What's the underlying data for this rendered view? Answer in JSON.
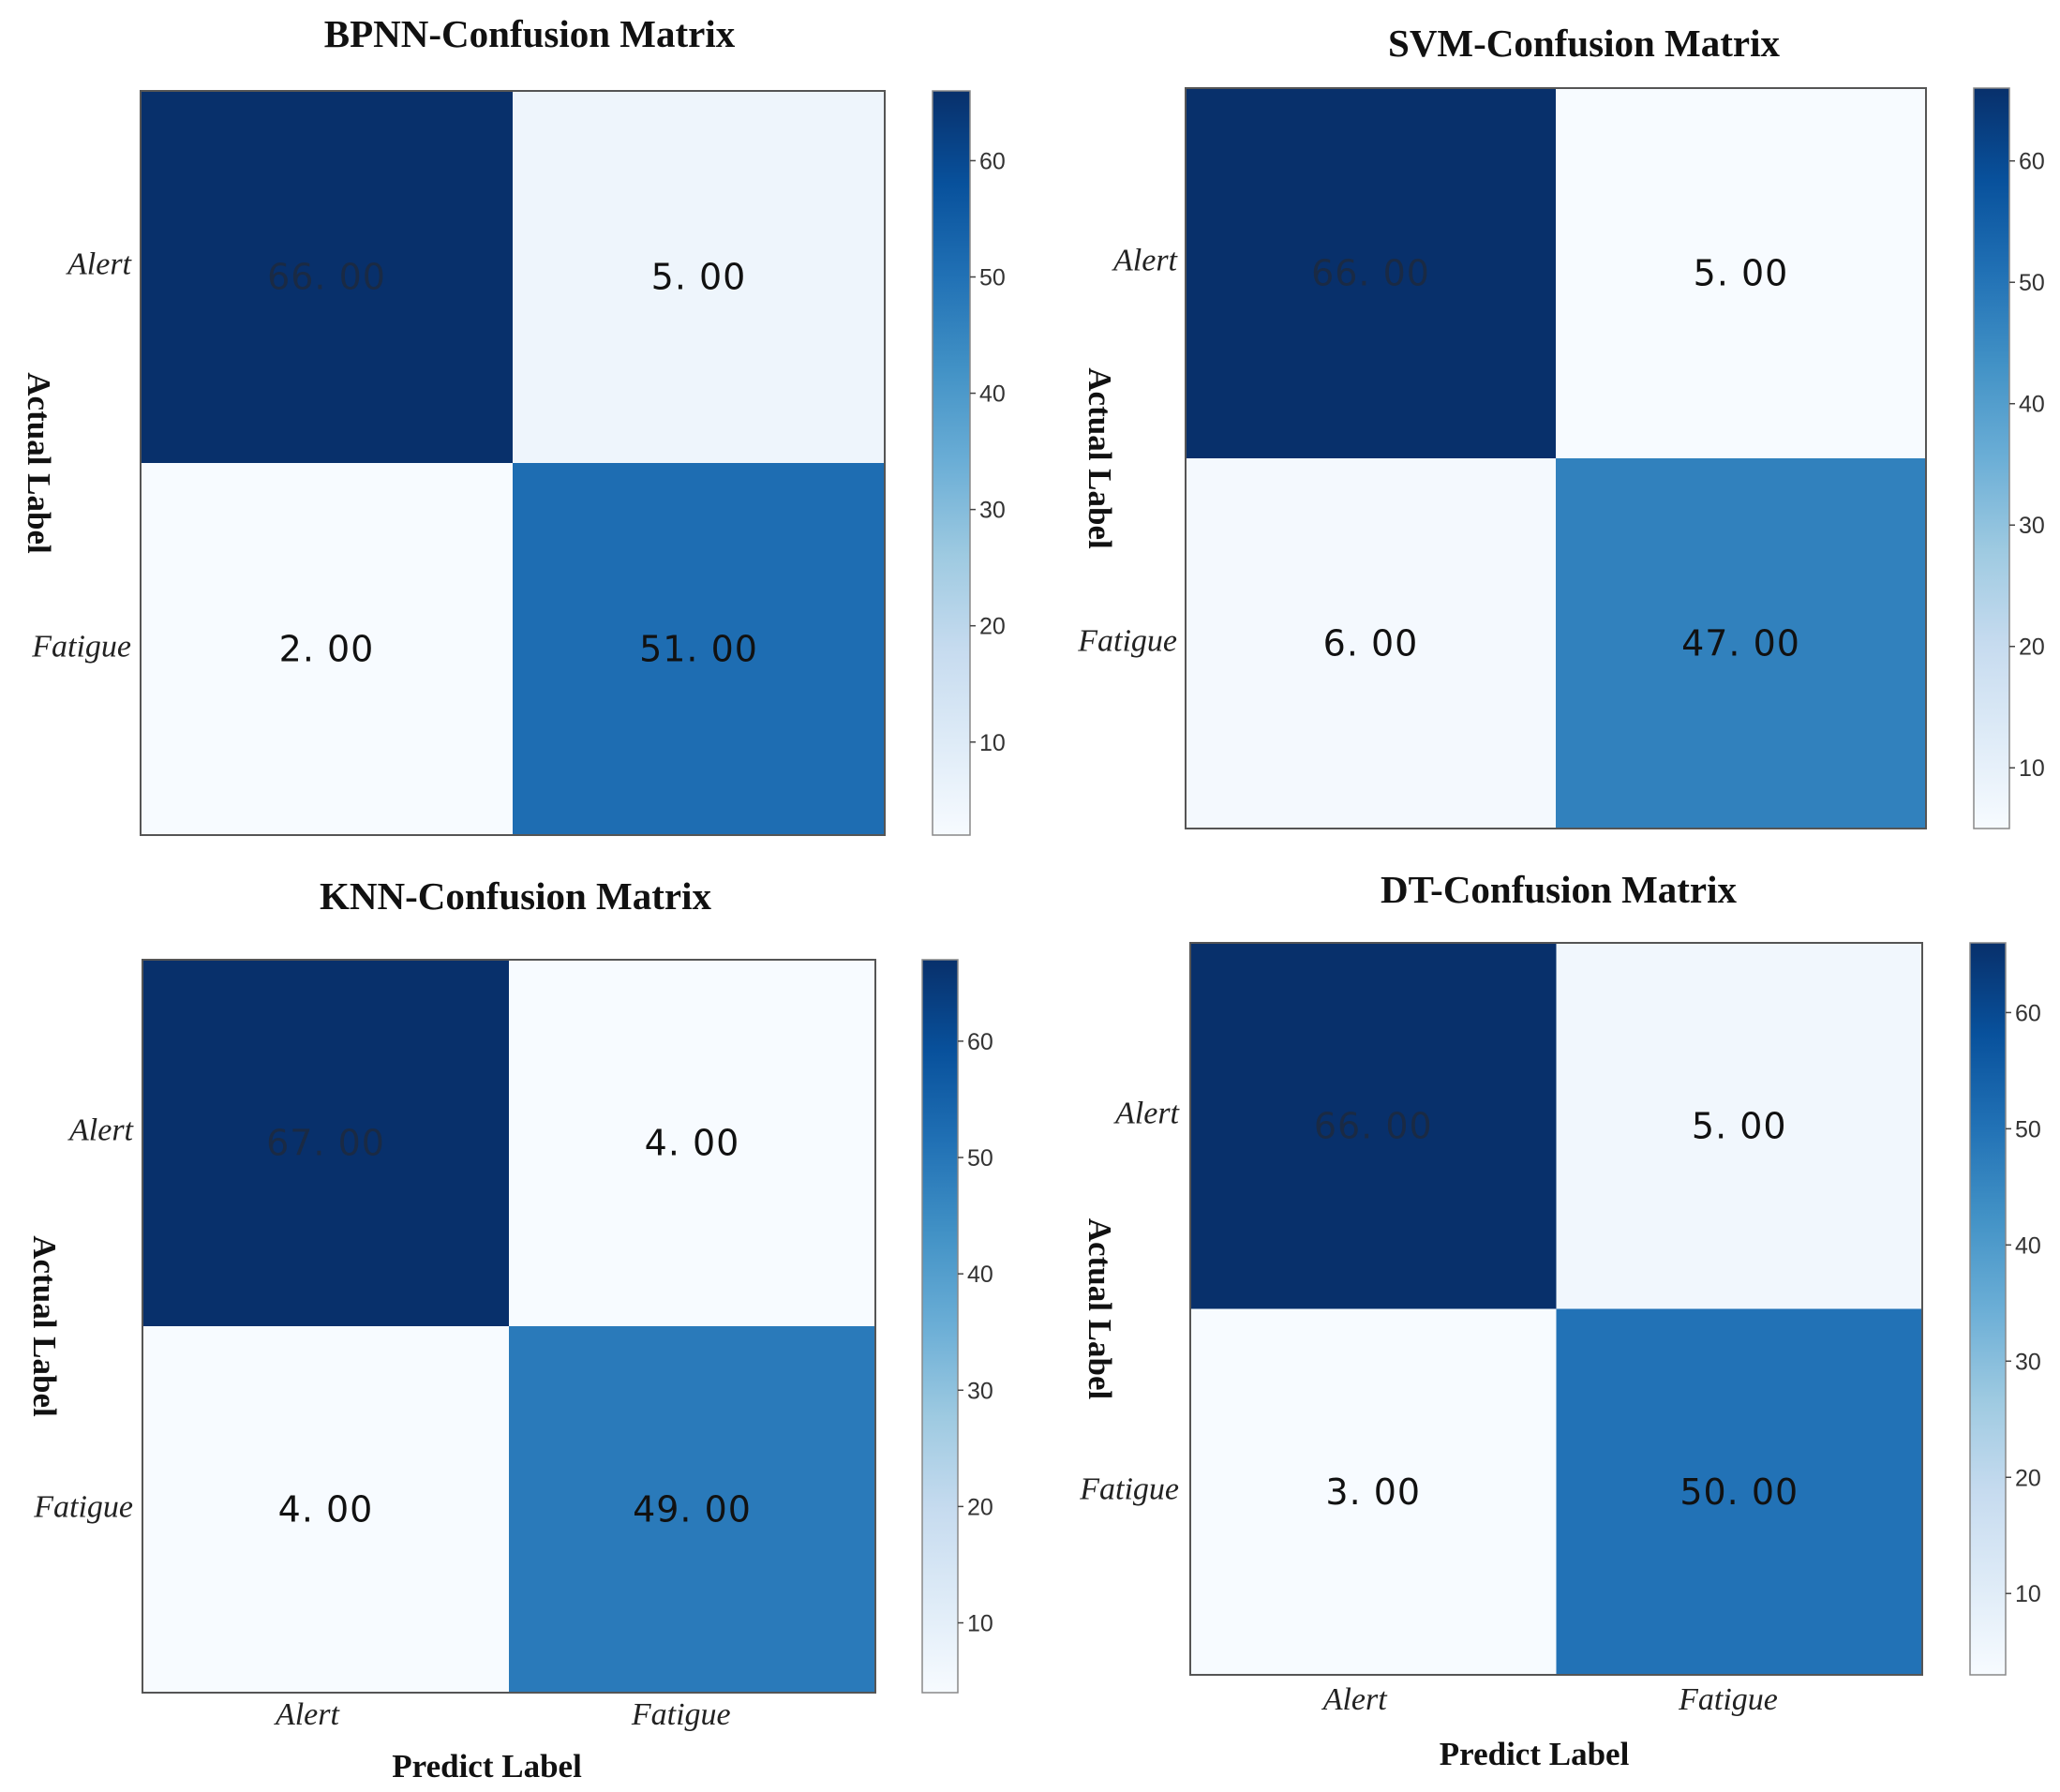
{
  "chart_data": [
    {
      "type": "heatmap",
      "title": "BPNN-Confusion Matrix",
      "ylabel": "Actual Label",
      "xlabel": "",
      "rows": [
        "Alert",
        "Fatigue"
      ],
      "cols": [],
      "values": [
        [
          66.0,
          5.0
        ],
        [
          2.0,
          51.0
        ]
      ],
      "display_values": [
        [
          "66. 00",
          "5. 00"
        ],
        [
          "2. 00",
          "51. 00"
        ]
      ],
      "colorbar": {
        "range": [
          2,
          66
        ],
        "ticks": [
          10,
          20,
          30,
          40,
          50,
          60
        ]
      }
    },
    {
      "type": "heatmap",
      "title": "SVM-Confusion Matrix",
      "ylabel": "Actual Label",
      "xlabel": "",
      "rows": [
        "Alert",
        "Fatigue"
      ],
      "cols": [],
      "values": [
        [
          66.0,
          5.0
        ],
        [
          6.0,
          47.0
        ]
      ],
      "display_values": [
        [
          "66. 00",
          "5. 00"
        ],
        [
          "6. 00",
          "47. 00"
        ]
      ],
      "colorbar": {
        "range": [
          5,
          66
        ],
        "ticks": [
          10,
          20,
          30,
          40,
          50,
          60
        ]
      }
    },
    {
      "type": "heatmap",
      "title": "KNN-Confusion Matrix",
      "ylabel": "Actual Label",
      "xlabel": "Predict Label",
      "rows": [
        "Alert",
        "Fatigue"
      ],
      "cols": [
        "Alert",
        "Fatigue"
      ],
      "values": [
        [
          67.0,
          4.0
        ],
        [
          4.0,
          49.0
        ]
      ],
      "display_values": [
        [
          "67. 00",
          "4. 00"
        ],
        [
          "4. 00",
          "49. 00"
        ]
      ],
      "colorbar": {
        "range": [
          4,
          67
        ],
        "ticks": [
          10,
          20,
          30,
          40,
          50,
          60
        ]
      }
    },
    {
      "type": "heatmap",
      "title": "DT-Confusion Matrix",
      "ylabel": "Actual Label",
      "xlabel": "Predict Label",
      "rows": [
        "Alert",
        "Fatigue"
      ],
      "cols": [
        "Alert",
        "Fatigue"
      ],
      "values": [
        [
          66.0,
          5.0
        ],
        [
          3.0,
          50.0
        ]
      ],
      "display_values": [
        [
          "66. 00",
          "5. 00"
        ],
        [
          "3. 00",
          "50. 00"
        ]
      ],
      "colorbar": {
        "range": [
          3,
          66
        ],
        "ticks": [
          10,
          20,
          30,
          40,
          50,
          60
        ]
      }
    }
  ],
  "colormap": {
    "name": "Blues",
    "stops": [
      "#f7fbff",
      "#deebf7",
      "#c6dbef",
      "#9ecae1",
      "#6baed6",
      "#4292c6",
      "#2171b5",
      "#08519c",
      "#08306b"
    ]
  }
}
